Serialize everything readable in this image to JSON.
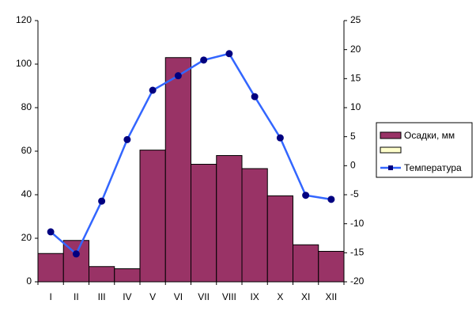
{
  "chart_data": {
    "type": "bar",
    "categories": [
      "I",
      "II",
      "III",
      "IV",
      "V",
      "VI",
      "VII",
      "VIII",
      "IX",
      "X",
      "XI",
      "XII"
    ],
    "series": [
      {
        "name": "Осадки, мм",
        "type": "bar",
        "color": "#993366",
        "values": [
          13,
          19,
          7,
          6,
          60.5,
          103,
          54,
          58,
          52,
          39.5,
          17,
          14
        ]
      },
      {
        "name": "Температура",
        "type": "line",
        "axis": "y2",
        "color": "#3366ff",
        "marker_color": "#000080",
        "values": [
          -11.4,
          -15.2,
          -6.1,
          4.5,
          13,
          15.5,
          18.2,
          19.3,
          11.9,
          4.8,
          -5.1,
          -5.8
        ]
      }
    ],
    "ylim": [
      0,
      120
    ],
    "yticks": [
      0,
      20,
      40,
      60,
      80,
      100,
      120
    ],
    "y2lim": [
      -20,
      25
    ],
    "y2ticks": [
      -20,
      -15,
      -10,
      -5,
      0,
      5,
      10,
      15,
      20,
      25
    ],
    "grid": false,
    "legend": "right"
  }
}
